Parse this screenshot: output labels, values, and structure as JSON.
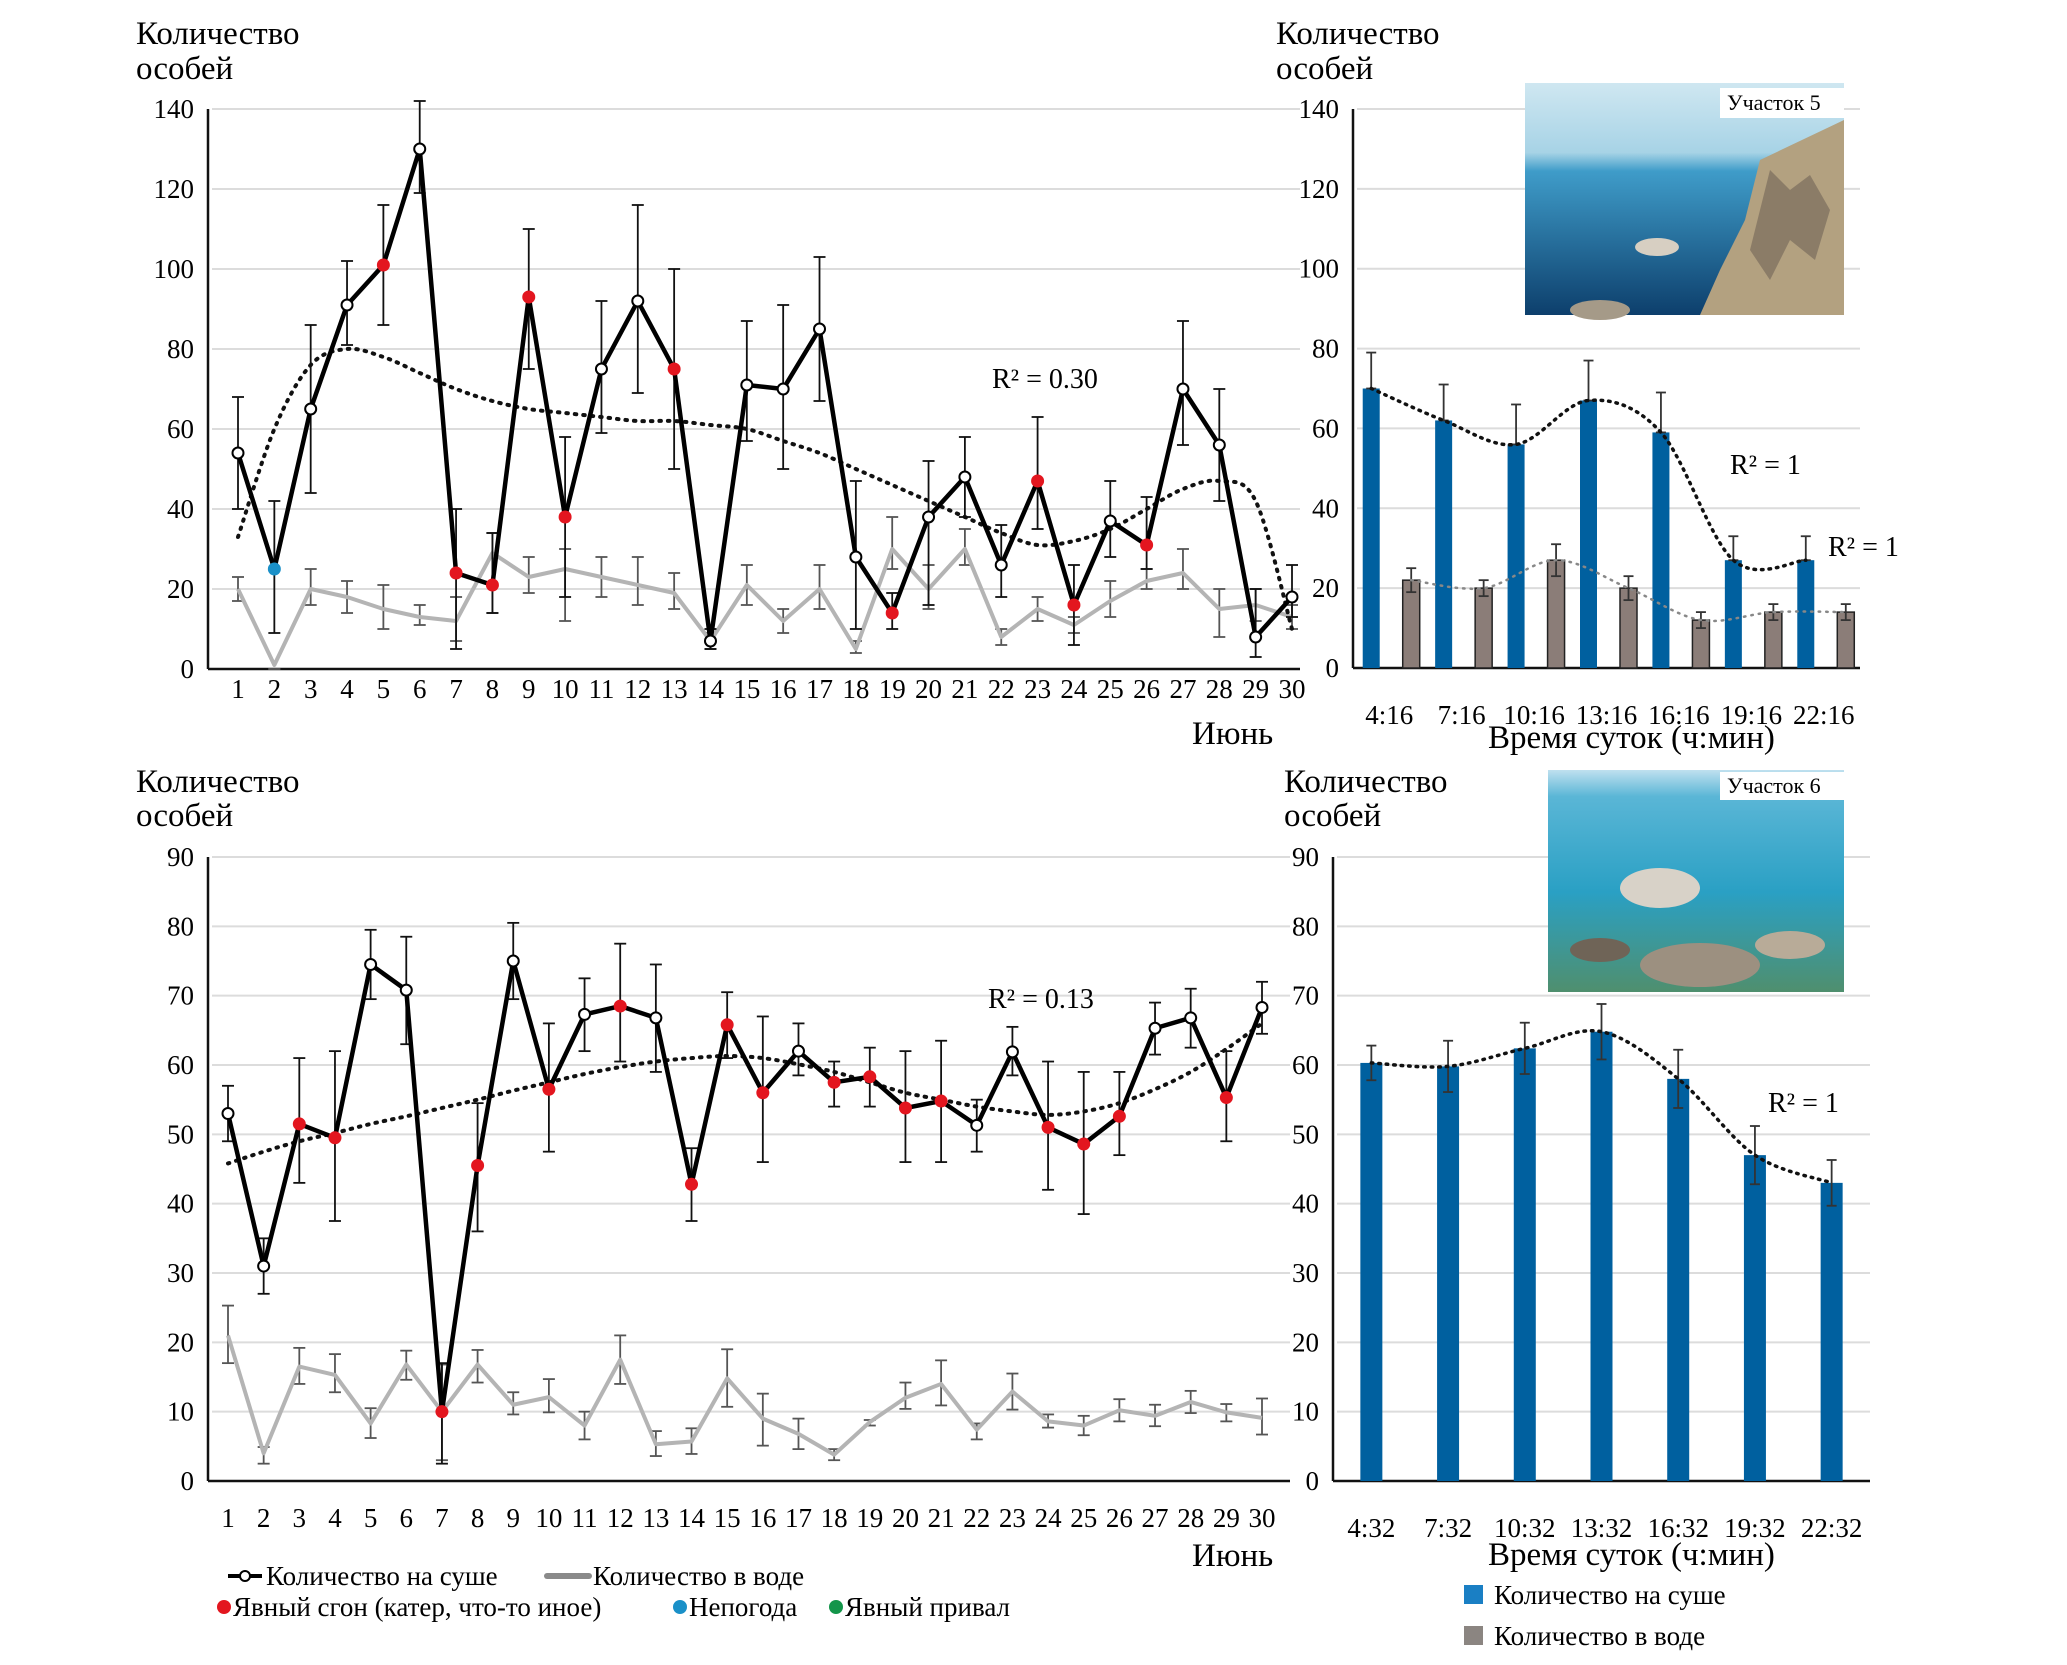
{
  "chart_data": [
    {
      "id": "chartA",
      "type": "line",
      "ylabel": "Количество особей",
      "xlabel": "Июнь",
      "ylim": [
        0,
        140
      ],
      "yticks": [
        0,
        20,
        40,
        60,
        80,
        100,
        120,
        140
      ],
      "grid": true,
      "x": [
        1,
        2,
        3,
        4,
        5,
        6,
        7,
        8,
        9,
        10,
        11,
        12,
        13,
        14,
        15,
        16,
        17,
        18,
        19,
        20,
        21,
        22,
        23,
        24,
        25,
        26,
        27,
        28,
        29,
        30
      ],
      "series": [
        {
          "name": "Количество на суше",
          "values": [
            54,
            25,
            65,
            91,
            101,
            130,
            24,
            21,
            93,
            38,
            75,
            92,
            75,
            7,
            71,
            70,
            85,
            28,
            14,
            38,
            48,
            26,
            47,
            16,
            37,
            31,
            70,
            56,
            8,
            18
          ],
          "err_low": [
            40,
            9,
            44,
            81,
            86,
            119,
            5,
            14,
            75,
            18,
            59,
            69,
            50,
            5,
            57,
            50,
            67,
            10,
            10,
            16,
            38,
            18,
            35,
            6,
            28,
            25,
            56,
            42,
            3,
            13
          ],
          "err_high": [
            68,
            42,
            86,
            102,
            116,
            142,
            40,
            34,
            110,
            58,
            92,
            116,
            100,
            10,
            87,
            91,
            103,
            47,
            19,
            52,
            58,
            36,
            63,
            26,
            47,
            43,
            87,
            70,
            20,
            26
          ],
          "markers": [
            "none",
            "weather",
            "none",
            "none",
            "drive",
            "none",
            "drive",
            "drive",
            "drive",
            "drive",
            "none",
            "none",
            "drive",
            "none",
            "none",
            "none",
            "none",
            "none",
            "drive",
            "none",
            "none",
            "none",
            "drive",
            "drive",
            "none",
            "drive",
            "none",
            "none",
            "none",
            "none"
          ]
        },
        {
          "name": "Количество в воде",
          "values": [
            20,
            1,
            20,
            18,
            15,
            13,
            12,
            29,
            23,
            25,
            23,
            21,
            19,
            7,
            21,
            12,
            20,
            5,
            30,
            20,
            30,
            8,
            15,
            11,
            17,
            22,
            24,
            15,
            16,
            13
          ],
          "err_low": [
            17,
            0,
            16,
            14,
            10,
            11,
            7,
            14,
            19,
            12,
            18,
            16,
            15,
            5,
            16,
            9,
            15,
            4,
            25,
            15,
            26,
            6,
            12,
            9,
            13,
            20,
            20,
            8,
            12,
            10
          ],
          "err_high": [
            23,
            0,
            25,
            22,
            21,
            16,
            18,
            34,
            28,
            30,
            28,
            28,
            24,
            9,
            26,
            15,
            26,
            7,
            38,
            26,
            35,
            10,
            18,
            13,
            22,
            25,
            30,
            20,
            20,
            16
          ]
        }
      ],
      "trendline": {
        "type": "polynomial",
        "r2_label": "R² = 0.30",
        "values": [
          33,
          60,
          76,
          80,
          78,
          74,
          70,
          67,
          65,
          64,
          63,
          62,
          62,
          61,
          60,
          57,
          54,
          50,
          46,
          42,
          38,
          34,
          31,
          32,
          35,
          40,
          45,
          47,
          42,
          10
        ]
      }
    },
    {
      "id": "chartB",
      "type": "bar",
      "ylabel": "Количество особей",
      "xlabel": "Время суток (ч:мин)",
      "ylim": [
        0,
        140
      ],
      "yticks": [
        0,
        20,
        40,
        60,
        80,
        100,
        120,
        140
      ],
      "grid": true,
      "photo_label": "Участок 5",
      "categories": [
        "4:16",
        "7:16",
        "10:16",
        "13:16",
        "16:16",
        "19:16",
        "22:16"
      ],
      "series": [
        {
          "name": "Количество на суше",
          "color": "#00609f",
          "values": [
            70,
            62,
            56,
            67,
            59,
            27,
            27
          ],
          "err": [
            9,
            9,
            10,
            10,
            10,
            6,
            6
          ],
          "trend_r2_label": "R² = 1"
        },
        {
          "name": "Количество в воде",
          "color": "#8b7d78",
          "values": [
            22,
            20,
            27,
            20,
            12,
            14,
            14
          ],
          "err": [
            3,
            2,
            4,
            3,
            2,
            2,
            2
          ],
          "trend_r2_label": "R² = 1"
        }
      ]
    },
    {
      "id": "chartC",
      "type": "line",
      "ylabel": "Количество особей",
      "xlabel": "Июнь",
      "ylim": [
        0,
        90
      ],
      "yticks": [
        0,
        10,
        20,
        30,
        40,
        50,
        60,
        70,
        80,
        90
      ],
      "grid": true,
      "x": [
        1,
        2,
        3,
        4,
        5,
        6,
        7,
        8,
        9,
        10,
        11,
        12,
        13,
        14,
        15,
        16,
        17,
        18,
        19,
        20,
        21,
        22,
        23,
        24,
        25,
        26,
        27,
        28,
        29,
        30
      ],
      "series": [
        {
          "name": "Количество на суше",
          "values": [
            53,
            31,
            51.5,
            49.5,
            74.5,
            70.8,
            10,
            45.5,
            75,
            56.5,
            67.3,
            68.5,
            66.8,
            42.8,
            65.8,
            56,
            62,
            57.5,
            58.3,
            53.8,
            54.8,
            51.3,
            61.9,
            51,
            48.6,
            52.6,
            65.3,
            66.8,
            55.3,
            68.3
          ],
          "err_low": [
            49,
            27,
            43,
            37.5,
            69.5,
            63,
            2.5,
            36,
            69.5,
            47.5,
            62,
            60.5,
            59,
            37.5,
            61,
            46,
            58.5,
            54,
            54,
            46,
            46,
            47.5,
            58.5,
            42,
            38.5,
            47,
            61.5,
            62.5,
            49,
            64.5
          ],
          "err_high": [
            57,
            35,
            61,
            62,
            79.5,
            78.5,
            17,
            54.5,
            80.5,
            66,
            72.5,
            77.5,
            74.5,
            48,
            70.5,
            67,
            66,
            60.5,
            62.5,
            62,
            63.5,
            55,
            65.5,
            60.5,
            59,
            59,
            69,
            71,
            62,
            72
          ],
          "markers": [
            "none",
            "none",
            "drive",
            "drive",
            "none",
            "none",
            "drive",
            "drive",
            "none",
            "drive",
            "none",
            "drive",
            "none",
            "drive",
            "drive",
            "drive",
            "none",
            "drive",
            "drive",
            "drive",
            "drive",
            "none",
            "none",
            "drive",
            "drive",
            "drive",
            "none",
            "none",
            "drive",
            "none"
          ]
        },
        {
          "name": "Количество в воде",
          "values": [
            21,
            4,
            16.5,
            15.3,
            8.3,
            16.8,
            10,
            16.8,
            11,
            12.1,
            8,
            17.5,
            5.3,
            5.7,
            14.8,
            9,
            6.8,
            3.8,
            8.5,
            12,
            14,
            7.4,
            12.9,
            8.6,
            8,
            10.2,
            9.4,
            11.4,
            9.9,
            9.1
          ],
          "err_low": [
            17,
            2.5,
            14,
            12.8,
            6.2,
            14.6,
            3,
            14.2,
            9.6,
            9.9,
            6,
            14,
            3.6,
            3.9,
            10.7,
            5.1,
            4.6,
            3,
            8,
            10.4,
            10.9,
            6,
            10.3,
            7.7,
            6.6,
            8.6,
            7.9,
            9.8,
            8.6,
            6.7
          ],
          "err_high": [
            25.3,
            4.9,
            19.2,
            18.3,
            10.5,
            18.8,
            16.8,
            18.9,
            12.8,
            14.7,
            10,
            21,
            7.2,
            7.6,
            19,
            12.6,
            9,
            4.6,
            8.8,
            14.2,
            17.4,
            8.3,
            15.5,
            9.6,
            9.4,
            11.8,
            11,
            13,
            11.1,
            11.9
          ]
        }
      ],
      "trendline": {
        "type": "polynomial",
        "r2_label": "R² = 0.13",
        "values": [
          45.8,
          47.5,
          49,
          50.2,
          51.5,
          52.6,
          53.8,
          55,
          56.3,
          57.5,
          58.7,
          59.7,
          60.5,
          61,
          61.3,
          61,
          60.1,
          59,
          57.5,
          56,
          55,
          54,
          53.3,
          52.8,
          53.3,
          54.5,
          56.5,
          59,
          62.3,
          66
        ]
      }
    },
    {
      "id": "chartD",
      "type": "bar",
      "ylabel": "Количество особей",
      "xlabel": "Время суток (ч:мин)",
      "ylim": [
        0,
        90
      ],
      "yticks": [
        0,
        10,
        20,
        30,
        40,
        50,
        60,
        70,
        80,
        90
      ],
      "grid": true,
      "photo_label": "Участок 6",
      "categories": [
        "4:32",
        "7:32",
        "10:32",
        "13:32",
        "16:32",
        "19:32",
        "22:32"
      ],
      "series": [
        {
          "name": "Количество на суше",
          "color": "#00609f",
          "values": [
            60.3,
            59.8,
            62.4,
            64.8,
            58,
            47,
            43
          ],
          "err": [
            2.5,
            3.7,
            3.7,
            4,
            4.2,
            4.2,
            3.3
          ],
          "trend_r2_label": "R² = 1"
        }
      ]
    }
  ],
  "legend_left": {
    "land": "Количество на суше",
    "water": "Количество в воде",
    "drive": "Явный сгон (катер, что-то иное)",
    "weather": "Непогода",
    "rest": "Явный привал",
    "colors": {
      "drive": "#e3161f",
      "weather": "#1a90c8",
      "rest": "#13954a",
      "land": "#000000",
      "water": "#b4b4b4"
    }
  },
  "legend_right": {
    "land": "Количество на суше",
    "water": "Количество в воде",
    "colors": {
      "land": "#00609f",
      "water": "#8b7d78"
    }
  },
  "labels": {
    "ylabel_line1": "Количество",
    "ylabel_line2": "особей",
    "month": "Июнь",
    "time_axis": "Время суток (ч:мин)"
  }
}
